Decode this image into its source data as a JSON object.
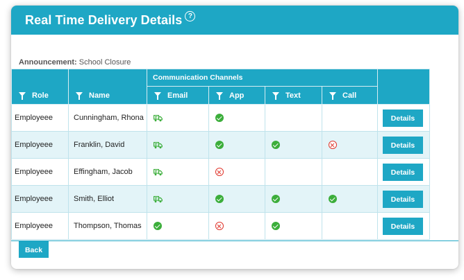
{
  "header": {
    "title": "Real Time Delivery Details",
    "help_icon": "?"
  },
  "announcement": {
    "label": "Announcement:",
    "value": "School Closure"
  },
  "table": {
    "group_header": "Communication Channels",
    "columns": {
      "role": "Role",
      "name": "Name",
      "email": "Email",
      "app": "App",
      "text": "Text",
      "call": "Call"
    },
    "rows": [
      {
        "role": "Employeee",
        "name": "Cunningham, Rhona",
        "email": "sent-truck",
        "app": "success",
        "text": "",
        "call": "",
        "action": "Details"
      },
      {
        "role": "Employeee",
        "name": "Franklin, David",
        "email": "sent-truck",
        "app": "success",
        "text": "success",
        "call": "failed",
        "action": "Details"
      },
      {
        "role": "Employeee",
        "name": "Effingham, Jacob",
        "email": "sent-truck",
        "app": "failed",
        "text": "",
        "call": "",
        "action": "Details"
      },
      {
        "role": "Employeee",
        "name": "Smith, Elliot",
        "email": "sent-truck",
        "app": "success",
        "text": "success",
        "call": "success",
        "action": "Details"
      },
      {
        "role": "Employeee",
        "name": "Thompson, Thomas",
        "email": "success",
        "app": "failed",
        "text": "success",
        "call": "",
        "action": "Details"
      }
    ]
  },
  "footer": {
    "back_label": "Back"
  },
  "colors": {
    "accent": "#1ea7c5",
    "success": "#3cae3b",
    "failed": "#e0342a",
    "alt_row": "#e3f4f8"
  }
}
